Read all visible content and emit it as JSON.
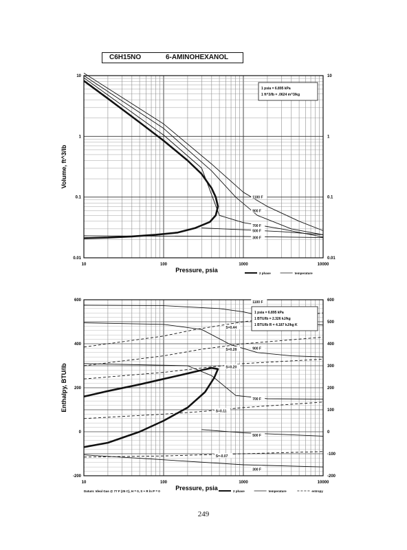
{
  "header": {
    "formula": "C6H15NO",
    "name": "6-AMINOHEXANOL"
  },
  "page_number": "249",
  "chart_data": [
    {
      "type": "line",
      "title": "",
      "xlabel": "Pressure,  psia",
      "ylabel": "Volume, ft^3/lb",
      "xscale": "log",
      "yscale": "log",
      "xlim": [
        10,
        10000
      ],
      "ylim": [
        0.01,
        10
      ],
      "x_ticks": [
        "10",
        "100",
        "1000",
        "10000"
      ],
      "y_ticks_left": [
        "0.01",
        "0.1",
        "1",
        "10"
      ],
      "y_ticks_right": [
        "0.01",
        "0.1",
        "1",
        "10"
      ],
      "grid": true,
      "note_lines": [
        "1 psia = 6.895 kPa",
        "1 ft^3/lb = .0624 m^3/kg"
      ],
      "legend": {
        "placement": "bottom-right",
        "items": [
          "2 phase",
          "temperature"
        ]
      },
      "series": [
        {
          "name": "2 phase",
          "style": "thick",
          "points": [
            [
              10,
              8.2
            ],
            [
              20,
              4.2
            ],
            [
              50,
              1.7
            ],
            [
              100,
              0.85
            ],
            [
              200,
              0.4
            ],
            [
              300,
              0.24
            ],
            [
              400,
              0.14
            ],
            [
              450,
              0.1
            ],
            [
              480,
              0.07
            ],
            [
              450,
              0.05
            ],
            [
              380,
              0.039
            ],
            [
              250,
              0.031
            ],
            [
              150,
              0.026
            ],
            [
              80,
              0.024
            ],
            [
              40,
              0.0225
            ],
            [
              20,
              0.0215
            ],
            [
              10,
              0.021
            ]
          ]
        },
        {
          "label": "1100 F",
          "style": "thin",
          "points": [
            [
              10,
              11
            ],
            [
              100,
              1.6
            ],
            [
              400,
              0.35
            ],
            [
              1000,
              0.12
            ],
            [
              2000,
              0.07
            ],
            [
              5000,
              0.04
            ],
            [
              10000,
              0.028
            ]
          ]
        },
        {
          "label": "900 F",
          "style": "thin",
          "points": [
            [
              10,
              10
            ],
            [
              100,
              1.35
            ],
            [
              400,
              0.27
            ],
            [
              800,
              0.1
            ],
            [
              1500,
              0.05
            ],
            [
              4000,
              0.03
            ],
            [
              10000,
              0.024
            ]
          ]
        },
        {
          "label": "700 F",
          "style": "thin",
          "points": [
            [
              10,
              9.2
            ],
            [
              100,
              1.05
            ],
            [
              300,
              0.3
            ],
            [
              500,
              0.05
            ],
            [
              1000,
              0.038
            ],
            [
              3000,
              0.03
            ],
            [
              10000,
              0.022
            ]
          ]
        },
        {
          "label": "500 F",
          "style": "thin",
          "points": [
            [
              300,
              0.031
            ],
            [
              1000,
              0.029
            ],
            [
              3000,
              0.027
            ],
            [
              10000,
              0.024
            ]
          ]
        },
        {
          "label": "300 F",
          "style": "thin",
          "points": [
            [
              10,
              0.023
            ],
            [
              1000,
              0.0225
            ],
            [
              10000,
              0.0215
            ]
          ]
        }
      ],
      "annotations": [
        "1100 F",
        "900 F",
        "700 F",
        "500 F",
        "300 F"
      ]
    },
    {
      "type": "line",
      "title": "",
      "xlabel": "Pressure,  psia",
      "ylabel": "Enthalpy, BTU/lb",
      "xscale": "log",
      "yscale": "linear",
      "xlim": [
        10,
        10000
      ],
      "ylim": [
        -200,
        600
      ],
      "x_ticks": [
        "10",
        "100",
        "1000",
        "10000"
      ],
      "y_ticks_left": [
        "-200",
        "0",
        "200",
        "400",
        "600"
      ],
      "y_ticks_right": [
        "-200",
        "-100",
        "0",
        "100",
        "200",
        "300",
        "400",
        "500",
        "600"
      ],
      "grid": true,
      "note_lines": [
        "1 psia = 6.895 kPa",
        "1 BTU/lb = 2.326 kJ/kg",
        "1 BTU/lb R = 4.187 kJ/kg K"
      ],
      "datum": "Datum: Ideal Gas @ 77 F (25 C),  H = 0,  S + R ln P = 0",
      "legend": {
        "placement": "bottom-right",
        "items": [
          "2 phase",
          "temperature",
          "entropy"
        ]
      },
      "series": [
        {
          "name": "2 phase",
          "style": "thick",
          "points": [
            [
              10,
              160
            ],
            [
              20,
              185
            ],
            [
              50,
              215
            ],
            [
              100,
              240
            ],
            [
              200,
              265
            ],
            [
              300,
              280
            ],
            [
              400,
              290
            ],
            [
              480,
              285
            ],
            [
              430,
              245
            ],
            [
              330,
              180
            ],
            [
              200,
              110
            ],
            [
              100,
              50
            ],
            [
              50,
              0
            ],
            [
              20,
              -50
            ],
            [
              10,
              -70
            ]
          ]
        },
        {
          "label": "1100 F",
          "style": "thin",
          "points": [
            [
              10,
              575
            ],
            [
              100,
              573
            ],
            [
              500,
              560
            ],
            [
              1000,
              545
            ],
            [
              2000,
              520
            ],
            [
              5000,
              495
            ],
            [
              10000,
              485
            ]
          ]
        },
        {
          "label": "900 F",
          "style": "thin",
          "points": [
            [
              10,
              495
            ],
            [
              100,
              488
            ],
            [
              300,
              465
            ],
            [
              700,
              395
            ],
            [
              1500,
              360
            ],
            [
              4000,
              345
            ],
            [
              10000,
              340
            ]
          ]
        },
        {
          "label": "700 F",
          "style": "thin",
          "points": [
            [
              10,
              310
            ],
            [
              200,
              300
            ],
            [
              400,
              255
            ],
            [
              800,
              165
            ],
            [
              2000,
              150
            ],
            [
              10000,
              148
            ]
          ]
        },
        {
          "label": "500 F",
          "style": "thin",
          "points": [
            [
              300,
              10
            ],
            [
              1000,
              -5
            ],
            [
              3000,
              -12
            ],
            [
              10000,
              -20
            ]
          ]
        },
        {
          "label": "300 F",
          "style": "thin",
          "points": [
            [
              10,
              -105
            ],
            [
              1000,
              -150
            ],
            [
              10000,
              -160
            ]
          ]
        },
        {
          "label": "S=0.44",
          "style": "dashed",
          "points": [
            [
              10,
              385
            ],
            [
              100,
              435
            ],
            [
              250,
              465
            ],
            [
              1000,
              500
            ],
            [
              10000,
              540
            ]
          ]
        },
        {
          "label": "S=0.28",
          "style": "dashed",
          "points": [
            [
              10,
              300
            ],
            [
              100,
              345
            ],
            [
              300,
              375
            ],
            [
              1000,
              400
            ],
            [
              10000,
              430
            ]
          ]
        },
        {
          "label": "S=0.20",
          "style": "dashed",
          "points": [
            [
              10,
              240
            ],
            [
              100,
              270
            ],
            [
              300,
              290
            ],
            [
              1000,
              310
            ],
            [
              10000,
              330
            ]
          ]
        },
        {
          "label": "S=0.11",
          "style": "dashed",
          "points": [
            [
              10,
              60
            ],
            [
              100,
              80
            ],
            [
              300,
              92
            ],
            [
              1000,
              110
            ],
            [
              10000,
              135
            ]
          ]
        },
        {
          "label": "S=-0.07",
          "style": "dashed",
          "points": [
            [
              10,
              -115
            ],
            [
              100,
              -110
            ],
            [
              300,
              -105
            ],
            [
              1000,
              -100
            ],
            [
              10000,
              -90
            ]
          ]
        }
      ],
      "annotations": [
        "1100 F",
        "900 F",
        "700 F",
        "500 F",
        "300 F",
        "S=0.44",
        "S=0.28",
        "S=0.20",
        "S=0.11",
        "S=-0.07"
      ]
    }
  ]
}
